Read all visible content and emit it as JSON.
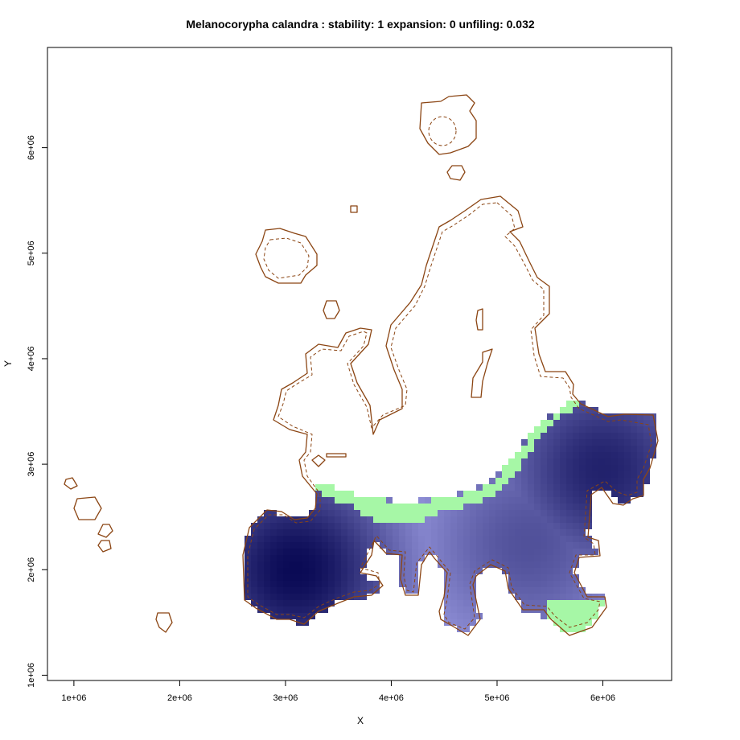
{
  "chart_data": {
    "type": "heatmap",
    "title": "Melanocorypha calandra : stability: 1 expansion: 0 unfiling: 0.032",
    "xlabel": "X",
    "ylabel": "Y",
    "xlim": [
      750000,
      6650000
    ],
    "ylim": [
      950000,
      6950000
    ],
    "x_ticks": [
      1000000,
      2000000,
      3000000,
      4000000,
      5000000,
      6000000
    ],
    "x_tick_labels": [
      "1e+06",
      "2e+06",
      "3e+06",
      "4e+06",
      "5e+06",
      "6e+06"
    ],
    "y_ticks": [
      1000000,
      2000000,
      3000000,
      4000000,
      5000000,
      6000000
    ],
    "y_tick_labels": [
      "1e+06",
      "2e+06",
      "3e+06",
      "4e+06",
      "5e+06",
      "6e+06"
    ],
    "stability": 1,
    "expansion": 0,
    "unfiling": 0.032,
    "colors": {
      "stability_low": "#A7A7EE",
      "stability_high": "#0A0A55",
      "expansion_band": "#A6F7A6",
      "coastline": "#8B4513"
    },
    "density_hotspots": [
      {
        "x": 3100000,
        "y": 2000000,
        "weight": 1.0
      },
      {
        "x": 6000000,
        "y": 2950000,
        "weight": 0.85
      },
      {
        "x": 5300000,
        "y": 2250000,
        "weight": 0.55
      }
    ]
  }
}
